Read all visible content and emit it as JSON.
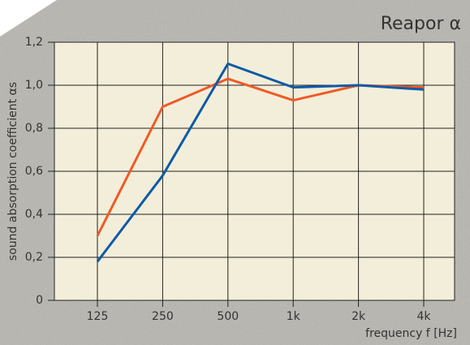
{
  "chart_data": {
    "type": "line",
    "title": "Reapor α",
    "ylabel": "sound absorption coefficient αs",
    "xlabel": "frequency f [Hz]",
    "categories": [
      "125",
      "250",
      "500",
      "1k",
      "2k",
      "4k"
    ],
    "series": [
      {
        "color": "#ef5a26",
        "values": [
          0.3,
          0.9,
          1.03,
          0.93,
          1.0,
          0.99
        ]
      },
      {
        "color": "#0d5aa7",
        "values": [
          0.18,
          0.58,
          1.1,
          0.99,
          1.0,
          0.98
        ]
      }
    ],
    "ylim": [
      0,
      1.2
    ],
    "yticks": [
      0,
      {
        "value": 0.2,
        "label": "0,2"
      },
      {
        "value": 0.4,
        "label": "0,4"
      },
      {
        "value": 0.6,
        "label": "0,6"
      },
      {
        "value": 0.8,
        "label": "0,8"
      },
      {
        "value": 1.0,
        "label": "1,0"
      },
      {
        "value": 1.2,
        "label": "1,2"
      }
    ],
    "grid": true
  }
}
